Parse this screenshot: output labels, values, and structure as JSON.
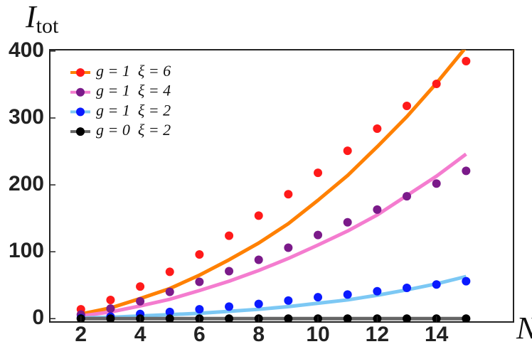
{
  "chart_data": {
    "type": "scatter",
    "y_label": "I",
    "y_label_sub": "tot",
    "x_label": "N",
    "x": [
      2,
      3,
      4,
      5,
      6,
      7,
      8,
      9,
      10,
      11,
      12,
      13,
      14,
      15
    ],
    "series": [
      {
        "name": "g = 1  ξ = 6",
        "color": "#ff1a1a",
        "line_color": "#ff8000",
        "values": [
          14,
          28,
          48,
          70,
          96,
          124,
          154,
          186,
          218,
          251,
          284,
          318,
          351,
          385
        ],
        "line_values": [
          7,
          16,
          30,
          45,
          65,
          88,
          113,
          142,
          177,
          214,
          257,
          302,
          352,
          406
        ]
      },
      {
        "name": "g = 1  ξ = 4",
        "color": "#7b1a8a",
        "line_color": "#f47ccf",
        "values": [
          6,
          15,
          26,
          40,
          55,
          71,
          88,
          106,
          125,
          144,
          163,
          183,
          202,
          221
        ],
        "line_values": [
          4,
          10,
          19,
          29,
          42,
          56,
          72,
          90,
          110,
          131,
          155,
          184,
          213,
          246
        ]
      },
      {
        "name": "g = 1  ξ = 2",
        "color": "#0a1aff",
        "line_color": "#7cc8f4",
        "values": [
          1,
          3,
          7,
          10,
          14,
          18,
          22,
          27,
          32,
          36,
          41,
          46,
          51,
          56
        ],
        "line_values": [
          1,
          2,
          4,
          6,
          8,
          11,
          14,
          18,
          23,
          28,
          35,
          43,
          52,
          63
        ]
      },
      {
        "name": "g = 0  ξ = 2",
        "color": "#000000",
        "line_color": "#666666",
        "values": [
          0,
          0,
          0,
          0,
          0,
          0,
          0,
          0,
          0,
          0,
          0,
          0,
          0,
          0
        ],
        "line_values": [
          0,
          0,
          0,
          0,
          0,
          0,
          0,
          0,
          0,
          0,
          0,
          0,
          0,
          0
        ]
      }
    ],
    "xlim": [
      0.95,
      16.6
    ],
    "ylim": [
      -5,
      402
    ],
    "xticks": [
      2,
      4,
      6,
      8,
      10,
      12,
      14
    ],
    "yticks": [
      0,
      100,
      200,
      300,
      400
    ],
    "legend": "upper-left"
  }
}
